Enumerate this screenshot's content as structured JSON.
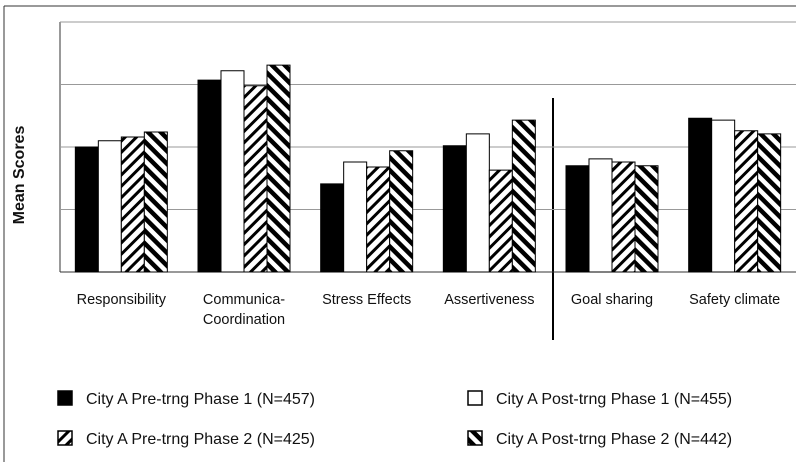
{
  "chart_data": {
    "type": "bar",
    "ylabel": "Mean Scores",
    "categories": [
      "Responsibility",
      "Communica-\nCoordination",
      "Stress Effects",
      "Assertiveness",
      "Goal sharing",
      "Safety climate"
    ],
    "series": [
      {
        "name": "City A Pre-trng Phase 1 (N=457)",
        "color": "#000000",
        "pattern": "solid",
        "values": [
          2.0,
          3.07,
          1.41,
          2.02,
          1.7,
          2.46
        ]
      },
      {
        "name": "City A Post-trng Phase 1 (N=455)",
        "color": "#ffffff",
        "pattern": "solid",
        "values": [
          2.1,
          3.22,
          1.76,
          2.21,
          1.81,
          2.43
        ]
      },
      {
        "name": "City A Pre-trng Phase 2 (N=425)",
        "color": "#000000",
        "pattern": "forward-hatch",
        "values": [
          2.16,
          2.98,
          1.68,
          1.63,
          1.76,
          2.26
        ]
      },
      {
        "name": "City A Post-trng Phase 2 (N=442)",
        "color": "#000000",
        "pattern": "back-hatch",
        "values": [
          2.24,
          3.31,
          1.94,
          2.43,
          1.7,
          2.21
        ]
      }
    ],
    "ylim": [
      0,
      4
    ],
    "yticks": [
      0,
      1,
      2,
      3,
      4
    ],
    "grid": true
  }
}
